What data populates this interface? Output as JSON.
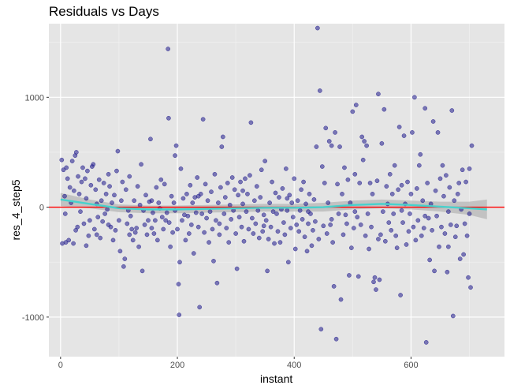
{
  "chart_data": {
    "type": "scatter",
    "title": "Residuals vs Days",
    "xlabel": "instant",
    "ylabel": "res_4_step5",
    "xlim": [
      -20,
      760
    ],
    "ylim": [
      -1360,
      1670
    ],
    "xticks": [
      0,
      200,
      400,
      600
    ],
    "yticks": [
      -1000,
      0,
      1000
    ],
    "grid": true,
    "point_color": "#1f1a8c",
    "smooth_color": "#48d1cc",
    "hline": {
      "y": 0,
      "color": "#ff0000"
    },
    "points": [
      [
        2,
        430
      ],
      [
        3,
        -330
      ],
      [
        5,
        340
      ],
      [
        7,
        100
      ],
      [
        9,
        -320
      ],
      [
        10,
        360
      ],
      [
        12,
        260
      ],
      [
        14,
        -300
      ],
      [
        16,
        180
      ],
      [
        18,
        40
      ],
      [
        20,
        420
      ],
      [
        22,
        -330
      ],
      [
        23,
        150
      ],
      [
        25,
        470
      ],
      [
        27,
        500
      ],
      [
        29,
        -180
      ],
      [
        30,
        280
      ],
      [
        32,
        120
      ],
      [
        34,
        -40
      ],
      [
        36,
        230
      ],
      [
        38,
        360
      ],
      [
        40,
        -150
      ],
      [
        42,
        260
      ],
      [
        44,
        80
      ],
      [
        46,
        330
      ],
      [
        48,
        -260
      ],
      [
        50,
        -120
      ],
      [
        52,
        200
      ],
      [
        54,
        370
      ],
      [
        56,
        390
      ],
      [
        58,
        -200
      ],
      [
        60,
        160
      ],
      [
        62,
        30
      ],
      [
        64,
        -90
      ],
      [
        66,
        250
      ],
      [
        68,
        -280
      ],
      [
        70,
        60
      ],
      [
        72,
        -130
      ],
      [
        74,
        220
      ],
      [
        76,
        -60
      ],
      [
        78,
        120
      ],
      [
        80,
        -20
      ],
      [
        82,
        -160
      ],
      [
        84,
        190
      ],
      [
        86,
        -180
      ],
      [
        88,
        40
      ],
      [
        90,
        -300
      ],
      [
        92,
        110
      ],
      [
        94,
        -210
      ],
      [
        96,
        330
      ],
      [
        98,
        510
      ],
      [
        100,
        -120
      ],
      [
        102,
        -400
      ],
      [
        104,
        60
      ],
      [
        106,
        230
      ],
      [
        108,
        -540
      ],
      [
        110,
        -470
      ],
      [
        112,
        160
      ],
      [
        114,
        -150
      ],
      [
        116,
        -30
      ],
      [
        118,
        280
      ],
      [
        120,
        -80
      ],
      [
        122,
        -200
      ],
      [
        124,
        -300
      ],
      [
        126,
        60
      ],
      [
        128,
        -230
      ],
      [
        130,
        -190
      ],
      [
        132,
        190
      ],
      [
        134,
        -360
      ],
      [
        136,
        20
      ],
      [
        138,
        390
      ],
      [
        140,
        -580
      ],
      [
        142,
        -30
      ],
      [
        144,
        -160
      ],
      [
        146,
        110
      ],
      [
        148,
        -250
      ],
      [
        150,
        -120
      ],
      [
        152,
        50
      ],
      [
        154,
        620
      ],
      [
        156,
        -190
      ],
      [
        158,
        -50
      ],
      [
        160,
        -240
      ],
      [
        162,
        -120
      ],
      [
        164,
        180
      ],
      [
        166,
        -300
      ],
      [
        168,
        40
      ],
      [
        170,
        -10
      ],
      [
        172,
        250
      ],
      [
        174,
        -90
      ],
      [
        176,
        -200
      ],
      [
        178,
        210
      ],
      [
        180,
        -120
      ],
      [
        182,
        -50
      ],
      [
        184,
        1440
      ],
      [
        185,
        810
      ],
      [
        186,
        -140
      ],
      [
        188,
        -360
      ],
      [
        190,
        100
      ],
      [
        192,
        -230
      ],
      [
        194,
        40
      ],
      [
        196,
        470
      ],
      [
        198,
        560
      ],
      [
        200,
        -200
      ],
      [
        202,
        -700
      ],
      [
        203,
        -980
      ],
      [
        204,
        -500
      ],
      [
        206,
        350
      ],
      [
        208,
        -120
      ],
      [
        210,
        80
      ],
      [
        212,
        -70
      ],
      [
        214,
        -300
      ],
      [
        216,
        120
      ],
      [
        218,
        -80
      ],
      [
        220,
        -240
      ],
      [
        222,
        200
      ],
      [
        224,
        -160
      ],
      [
        226,
        40
      ],
      [
        228,
        -420
      ],
      [
        230,
        90
      ],
      [
        232,
        -50
      ],
      [
        234,
        270
      ],
      [
        236,
        -180
      ],
      [
        238,
        -910
      ],
      [
        240,
        120
      ],
      [
        242,
        -60
      ],
      [
        244,
        800
      ],
      [
        246,
        -230
      ],
      [
        248,
        210
      ],
      [
        250,
        -100
      ],
      [
        252,
        60
      ],
      [
        254,
        -320
      ],
      [
        256,
        -40
      ],
      [
        258,
        140
      ],
      [
        260,
        -200
      ],
      [
        262,
        -490
      ],
      [
        264,
        300
      ],
      [
        266,
        -120
      ],
      [
        268,
        -690
      ],
      [
        270,
        40
      ],
      [
        272,
        -150
      ],
      [
        274,
        180
      ],
      [
        276,
        550
      ],
      [
        278,
        640
      ],
      [
        280,
        -60
      ],
      [
        282,
        90
      ],
      [
        284,
        -190
      ],
      [
        286,
        220
      ],
      [
        288,
        -320
      ],
      [
        290,
        20
      ],
      [
        292,
        -110
      ],
      [
        294,
        270
      ],
      [
        296,
        -30
      ],
      [
        298,
        160
      ],
      [
        300,
        -240
      ],
      [
        302,
        -560
      ],
      [
        304,
        110
      ],
      [
        306,
        -90
      ],
      [
        308,
        230
      ],
      [
        310,
        -180
      ],
      [
        312,
        30
      ],
      [
        314,
        -310
      ],
      [
        316,
        260
      ],
      [
        318,
        -40
      ],
      [
        320,
        120
      ],
      [
        322,
        -200
      ],
      [
        324,
        290
      ],
      [
        326,
        770
      ],
      [
        328,
        -100
      ],
      [
        330,
        -240
      ],
      [
        332,
        60
      ],
      [
        334,
        -150
      ],
      [
        336,
        190
      ],
      [
        338,
        -30
      ],
      [
        340,
        -280
      ],
      [
        342,
        90
      ],
      [
        344,
        340
      ],
      [
        346,
        -220
      ],
      [
        348,
        -70
      ],
      [
        350,
        420
      ],
      [
        352,
        -120
      ],
      [
        354,
        -580
      ],
      [
        356,
        -290
      ],
      [
        358,
        40
      ],
      [
        360,
        -180
      ],
      [
        362,
        230
      ],
      [
        364,
        -40
      ],
      [
        366,
        -330
      ],
      [
        368,
        130
      ],
      [
        370,
        -60
      ],
      [
        372,
        -220
      ],
      [
        374,
        90
      ],
      [
        376,
        -320
      ],
      [
        378,
        -20
      ],
      [
        380,
        170
      ],
      [
        382,
        -140
      ],
      [
        384,
        -250
      ],
      [
        386,
        350
      ],
      [
        388,
        -30
      ],
      [
        390,
        -500
      ],
      [
        392,
        110
      ],
      [
        394,
        -190
      ],
      [
        396,
        40
      ],
      [
        398,
        -90
      ],
      [
        400,
        260
      ],
      [
        402,
        -380
      ],
      [
        404,
        -160
      ],
      [
        406,
        60
      ],
      [
        408,
        -220
      ],
      [
        410,
        -30
      ],
      [
        412,
        160
      ],
      [
        414,
        -110
      ],
      [
        416,
        230
      ],
      [
        418,
        -270
      ],
      [
        420,
        30
      ],
      [
        422,
        -400
      ],
      [
        424,
        -150
      ],
      [
        426,
        120
      ],
      [
        428,
        -60
      ],
      [
        430,
        -350
      ],
      [
        432,
        -210
      ],
      [
        434,
        70
      ],
      [
        436,
        -130
      ],
      [
        438,
        550
      ],
      [
        440,
        1630
      ],
      [
        442,
        -290
      ],
      [
        444,
        1060
      ],
      [
        446,
        -1110
      ],
      [
        448,
        370
      ],
      [
        450,
        -170
      ],
      [
        452,
        220
      ],
      [
        454,
        720
      ],
      [
        456,
        -240
      ],
      [
        458,
        40
      ],
      [
        460,
        600
      ],
      [
        462,
        -160
      ],
      [
        464,
        560
      ],
      [
        466,
        -320
      ],
      [
        468,
        -720
      ],
      [
        470,
        680
      ],
      [
        472,
        -1200
      ],
      [
        474,
        210
      ],
      [
        476,
        -60
      ],
      [
        478,
        550
      ],
      [
        480,
        -840
      ],
      [
        482,
        120
      ],
      [
        484,
        -250
      ],
      [
        486,
        360
      ],
      [
        488,
        -70
      ],
      [
        490,
        -150
      ],
      [
        492,
        250
      ],
      [
        494,
        -620
      ],
      [
        496,
        40
      ],
      [
        498,
        -370
      ],
      [
        500,
        870
      ],
      [
        502,
        -190
      ],
      [
        504,
        300
      ],
      [
        506,
        930
      ],
      [
        508,
        -90
      ],
      [
        510,
        -630
      ],
      [
        512,
        220
      ],
      [
        514,
        -160
      ],
      [
        516,
        640
      ],
      [
        518,
        430
      ],
      [
        520,
        600
      ],
      [
        522,
        -260
      ],
      [
        524,
        560
      ],
      [
        526,
        -60
      ],
      [
        528,
        -380
      ],
      [
        530,
        220
      ],
      [
        532,
        -180
      ],
      [
        534,
        120
      ],
      [
        536,
        -680
      ],
      [
        538,
        -640
      ],
      [
        540,
        -750
      ],
      [
        542,
        240
      ],
      [
        544,
        1030
      ],
      [
        546,
        -660
      ],
      [
        548,
        -250
      ],
      [
        550,
        580
      ],
      [
        552,
        -40
      ],
      [
        554,
        890
      ],
      [
        556,
        -310
      ],
      [
        558,
        190
      ],
      [
        560,
        30
      ],
      [
        562,
        -140
      ],
      [
        564,
        300
      ],
      [
        566,
        -210
      ],
      [
        568,
        120
      ],
      [
        570,
        -60
      ],
      [
        572,
        380
      ],
      [
        574,
        -260
      ],
      [
        576,
        -370
      ],
      [
        578,
        160
      ],
      [
        580,
        730
      ],
      [
        582,
        -800
      ],
      [
        584,
        200
      ],
      [
        586,
        -140
      ],
      [
        588,
        650
      ],
      [
        590,
        30
      ],
      [
        592,
        -340
      ],
      [
        594,
        230
      ],
      [
        596,
        -220
      ],
      [
        598,
        -60
      ],
      [
        600,
        120
      ],
      [
        602,
        680
      ],
      [
        604,
        -180
      ],
      [
        606,
        1000
      ],
      [
        608,
        -300
      ],
      [
        610,
        170
      ],
      [
        612,
        -120
      ],
      [
        614,
        380
      ],
      [
        616,
        480
      ],
      [
        618,
        -260
      ],
      [
        620,
        60
      ],
      [
        622,
        -190
      ],
      [
        624,
        900
      ],
      [
        626,
        -1230
      ],
      [
        628,
        220
      ],
      [
        630,
        -100
      ],
      [
        632,
        -480
      ],
      [
        634,
        30
      ],
      [
        636,
        -210
      ],
      [
        638,
        780
      ],
      [
        640,
        -580
      ],
      [
        642,
        150
      ],
      [
        644,
        -80
      ],
      [
        646,
        680
      ],
      [
        648,
        -360
      ],
      [
        650,
        260
      ],
      [
        652,
        -180
      ],
      [
        654,
        380
      ],
      [
        656,
        100
      ],
      [
        658,
        -240
      ],
      [
        660,
        290
      ],
      [
        662,
        -590
      ],
      [
        664,
        -40
      ],
      [
        666,
        180
      ],
      [
        668,
        -160
      ],
      [
        670,
        880
      ],
      [
        672,
        -990
      ],
      [
        674,
        60
      ],
      [
        676,
        -270
      ],
      [
        678,
        -170
      ],
      [
        680,
        120
      ],
      [
        682,
        220
      ],
      [
        684,
        -470
      ],
      [
        686,
        -20
      ],
      [
        688,
        340
      ],
      [
        690,
        -430
      ],
      [
        692,
        -150
      ],
      [
        694,
        230
      ],
      [
        696,
        -260
      ],
      [
        698,
        -640
      ],
      [
        700,
        350
      ],
      [
        702,
        -730
      ],
      [
        704,
        560
      ],
      [
        8,
        -60
      ],
      [
        26,
        -210
      ],
      [
        44,
        -350
      ],
      [
        62,
        -250
      ],
      [
        82,
        300
      ],
      [
        118,
        -250
      ],
      [
        156,
        60
      ],
      [
        196,
        -30
      ],
      [
        236,
        100
      ],
      [
        272,
        -250
      ],
      [
        312,
        150
      ],
      [
        348,
        -170
      ],
      [
        388,
        80
      ],
      [
        424,
        -40
      ],
      [
        464,
        -110
      ],
      [
        504,
        -40
      ],
      [
        544,
        -290
      ],
      [
        584,
        -30
      ],
      [
        624,
        -80
      ],
      [
        664,
        -360
      ],
      [
        700,
        -60
      ]
    ],
    "smooth": [
      [
        0,
        70
      ],
      [
        50,
        30
      ],
      [
        100,
        -10
      ],
      [
        150,
        -20
      ],
      [
        200,
        -20
      ],
      [
        250,
        -15
      ],
      [
        300,
        -10
      ],
      [
        350,
        -5
      ],
      [
        400,
        -5
      ],
      [
        450,
        0
      ],
      [
        500,
        20
      ],
      [
        550,
        30
      ],
      [
        600,
        20
      ],
      [
        650,
        5
      ],
      [
        700,
        -10
      ],
      [
        730,
        -20
      ]
    ],
    "smooth_band": [
      [
        0,
        130,
        10
      ],
      [
        50,
        70,
        -10
      ],
      [
        100,
        25,
        -45
      ],
      [
        150,
        15,
        -55
      ],
      [
        200,
        15,
        -55
      ],
      [
        250,
        20,
        -50
      ],
      [
        300,
        25,
        -45
      ],
      [
        350,
        30,
        -40
      ],
      [
        400,
        30,
        -40
      ],
      [
        450,
        40,
        -40
      ],
      [
        500,
        60,
        -20
      ],
      [
        550,
        70,
        -10
      ],
      [
        600,
        60,
        -20
      ],
      [
        650,
        50,
        -40
      ],
      [
        700,
        50,
        -70
      ],
      [
        730,
        70,
        -110
      ]
    ]
  }
}
